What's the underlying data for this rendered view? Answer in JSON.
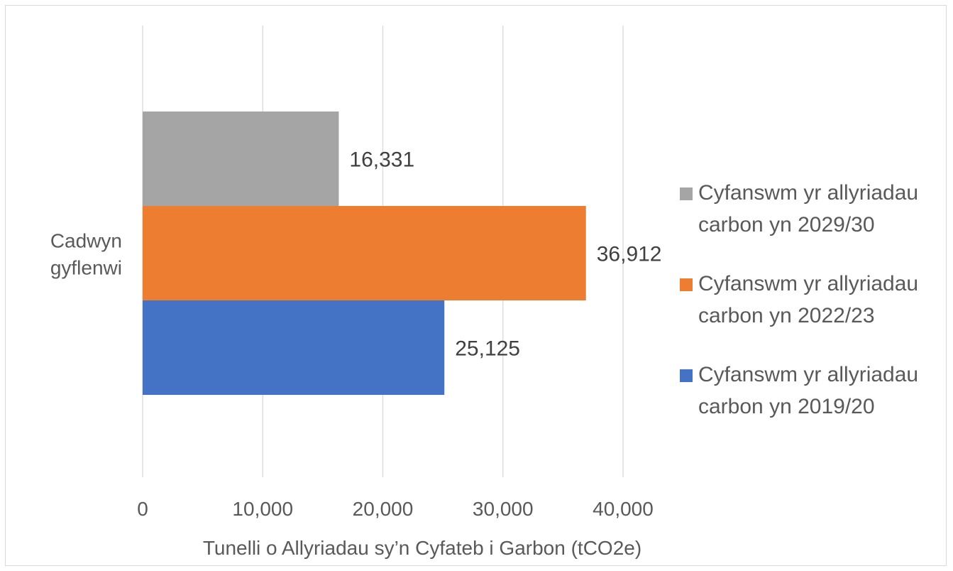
{
  "chart_data": {
    "type": "bar",
    "orientation": "horizontal",
    "categories": [
      "Cadwyn gyflenwi"
    ],
    "series": [
      {
        "name": "Cyfanswm yr allyriadau carbon yn 2019/20",
        "values": [
          25125
        ],
        "label": "25,125",
        "color": "#4472c4"
      },
      {
        "name": "Cyfanswm yr allyriadau carbon yn 2022/23",
        "values": [
          36912
        ],
        "label": "36,912",
        "color": "#ed7d31"
      },
      {
        "name": "Cyfanswm yr allyriadau carbon yn 2029/30",
        "values": [
          16331
        ],
        "label": "16,331",
        "color": "#a5a5a5"
      }
    ],
    "xlabel": "Tunelli o Allyriadau sy’n Cyfateb i Garbon (tCO2e)",
    "ylabel": "",
    "xlim": [
      0,
      40000
    ],
    "xticks": [
      0,
      10000,
      20000,
      30000,
      40000
    ],
    "xtick_labels": [
      "0",
      "10,000",
      "20,000",
      "30,000",
      "40,000"
    ],
    "grid": true,
    "legend_position": "right"
  }
}
